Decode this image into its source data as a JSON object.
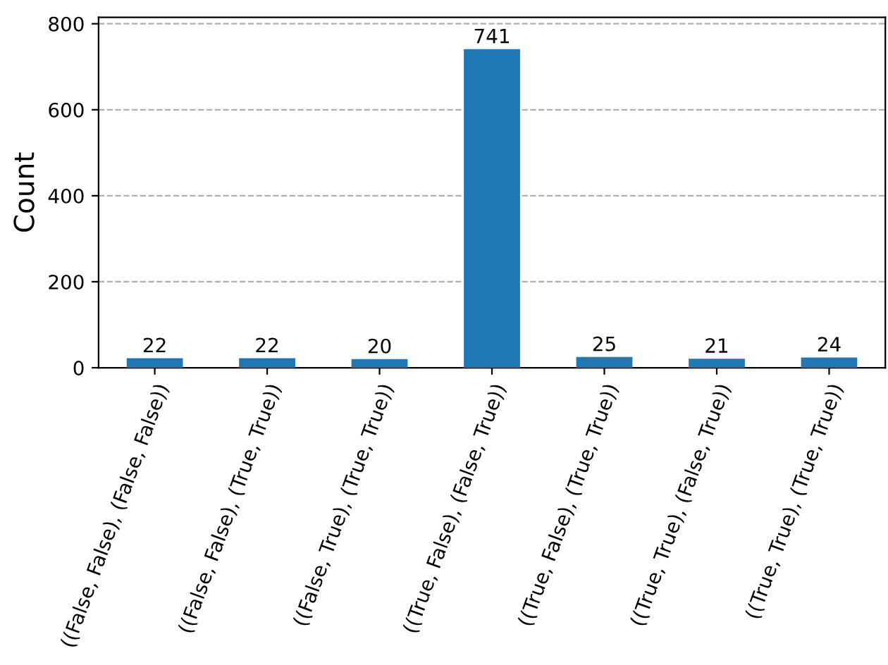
{
  "chart_data": {
    "type": "bar",
    "ylabel": "Count",
    "categories": [
      "((False, False), (False, False))",
      "((False, False), (True, True))",
      "((False, True), (True, True))",
      "((True, False), (False, True))",
      "((True, False), (True, True))",
      "((True, True), (False, True))",
      "((True, True), (True, True))"
    ],
    "values": [
      22,
      22,
      20,
      741,
      25,
      21,
      24
    ],
    "color": "#1f77b4",
    "ylim": [
      0,
      815
    ],
    "yticks": [
      0,
      200,
      400,
      600,
      800
    ],
    "grid": "y",
    "data_labels": true
  }
}
